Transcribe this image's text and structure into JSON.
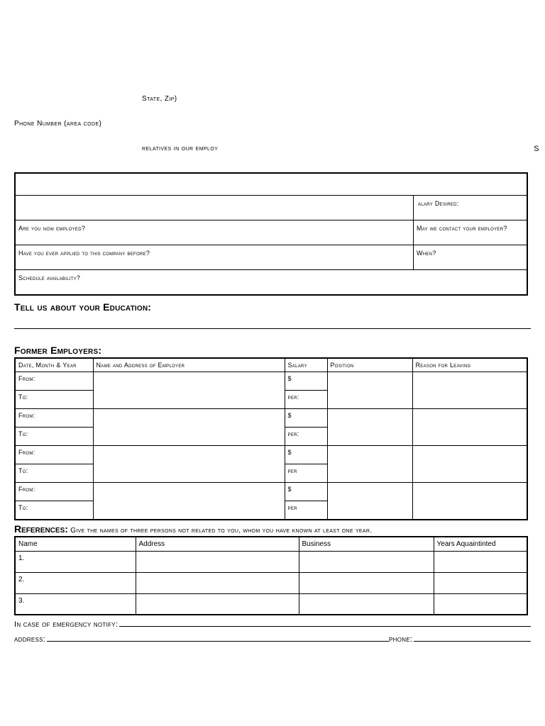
{
  "labels": {
    "state_zip": "State, Zip)",
    "phone": "Phone Number (area code)",
    "relatives": "relatives in our employ",
    "relatives_suffix": "S"
  },
  "boxA": {
    "salary_desired": "alary Desired:",
    "employed_q": "Are you now employed?",
    "contact_q": "May we contact your employer?",
    "applied_q": "Have you ever applied to this company before?",
    "when_q": "When?",
    "schedule_q": "Schedule availability?"
  },
  "education_heading": "Tell us about your Education:",
  "employers_heading": "Former Employers:",
  "emp_headers": {
    "date": "Date, Month & Year",
    "name": "Name and Address of Employer",
    "salary": "Salary",
    "position": "Position",
    "reason": "Reason for Leaving"
  },
  "emp_rows": {
    "from": "From:",
    "to": "To:",
    "dollar": "$",
    "per_colon": "per:",
    "per": "per"
  },
  "references": {
    "lead": "References:",
    "trail": "Give the names of three persons not related to you, whom you have known at least one year.",
    "headers": {
      "name": "Name",
      "address": "Address",
      "business": "Business",
      "years": "Years Aquaintinted"
    },
    "nums": [
      "1.",
      "2.",
      "3."
    ]
  },
  "footer": {
    "emergency": "In case of emergency notify:",
    "address": "address:",
    "phone": "phone:"
  }
}
